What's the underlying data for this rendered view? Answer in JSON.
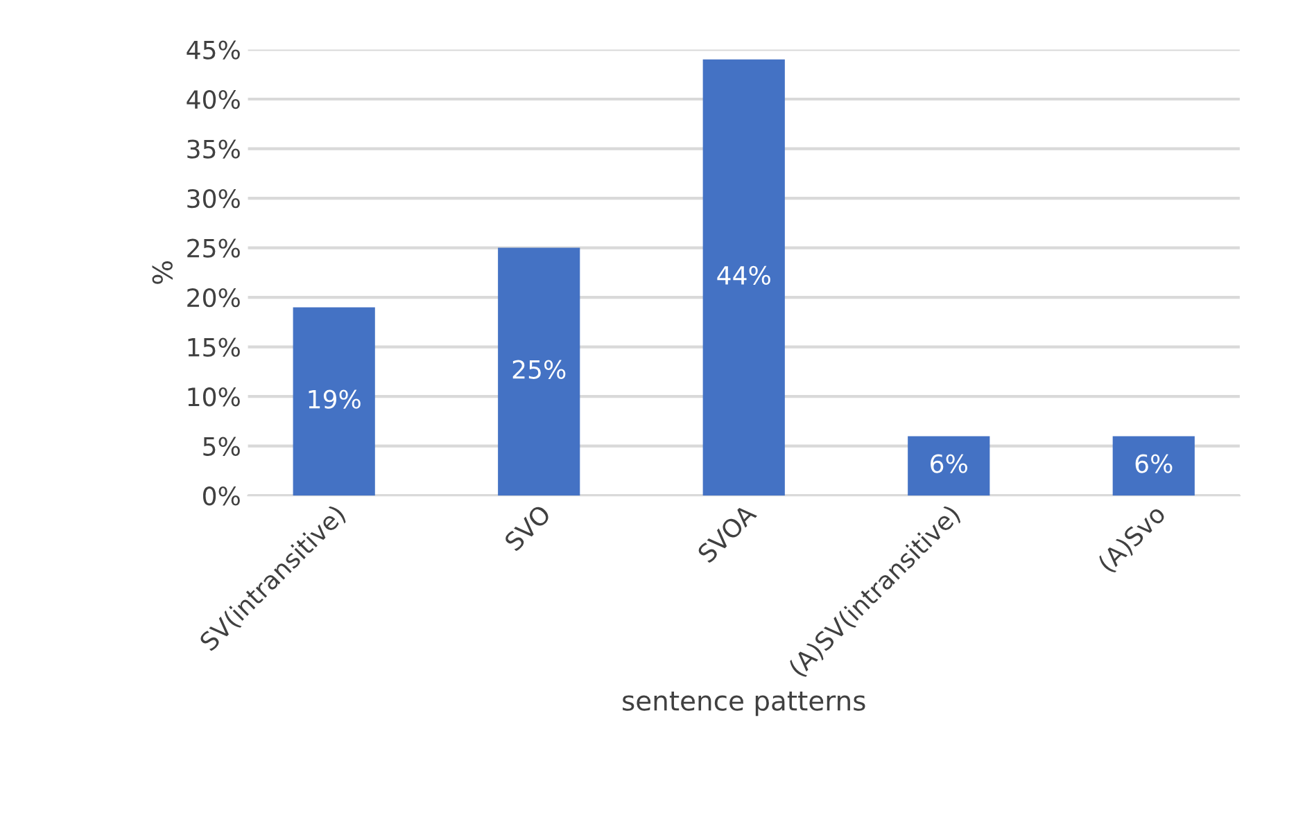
{
  "chart_data": {
    "type": "bar",
    "xlabel": "sentence patterns",
    "ylabel": "%",
    "categories": [
      "SV(intransitive)",
      "SVO",
      "SVOA",
      "(A)SV(intransitive)",
      "(A)Svo"
    ],
    "values": [
      19,
      25,
      44,
      6,
      6
    ],
    "value_labels": [
      "19%",
      "25%",
      "44%",
      "6%",
      "6%"
    ],
    "color": "#4472c4",
    "ylim": [
      0,
      45
    ],
    "yticks": [
      {
        "value": 0,
        "label": "0%"
      },
      {
        "value": 5,
        "label": "5%"
      },
      {
        "value": 10,
        "label": "10%"
      },
      {
        "value": 15,
        "label": "15%"
      },
      {
        "value": 20,
        "label": "20%"
      },
      {
        "value": 25,
        "label": "25%"
      },
      {
        "value": 30,
        "label": "30%"
      },
      {
        "value": 35,
        "label": "35%"
      },
      {
        "value": 40,
        "label": "40%"
      },
      {
        "value": 45,
        "label": "45%"
      }
    ],
    "grid": "y"
  }
}
